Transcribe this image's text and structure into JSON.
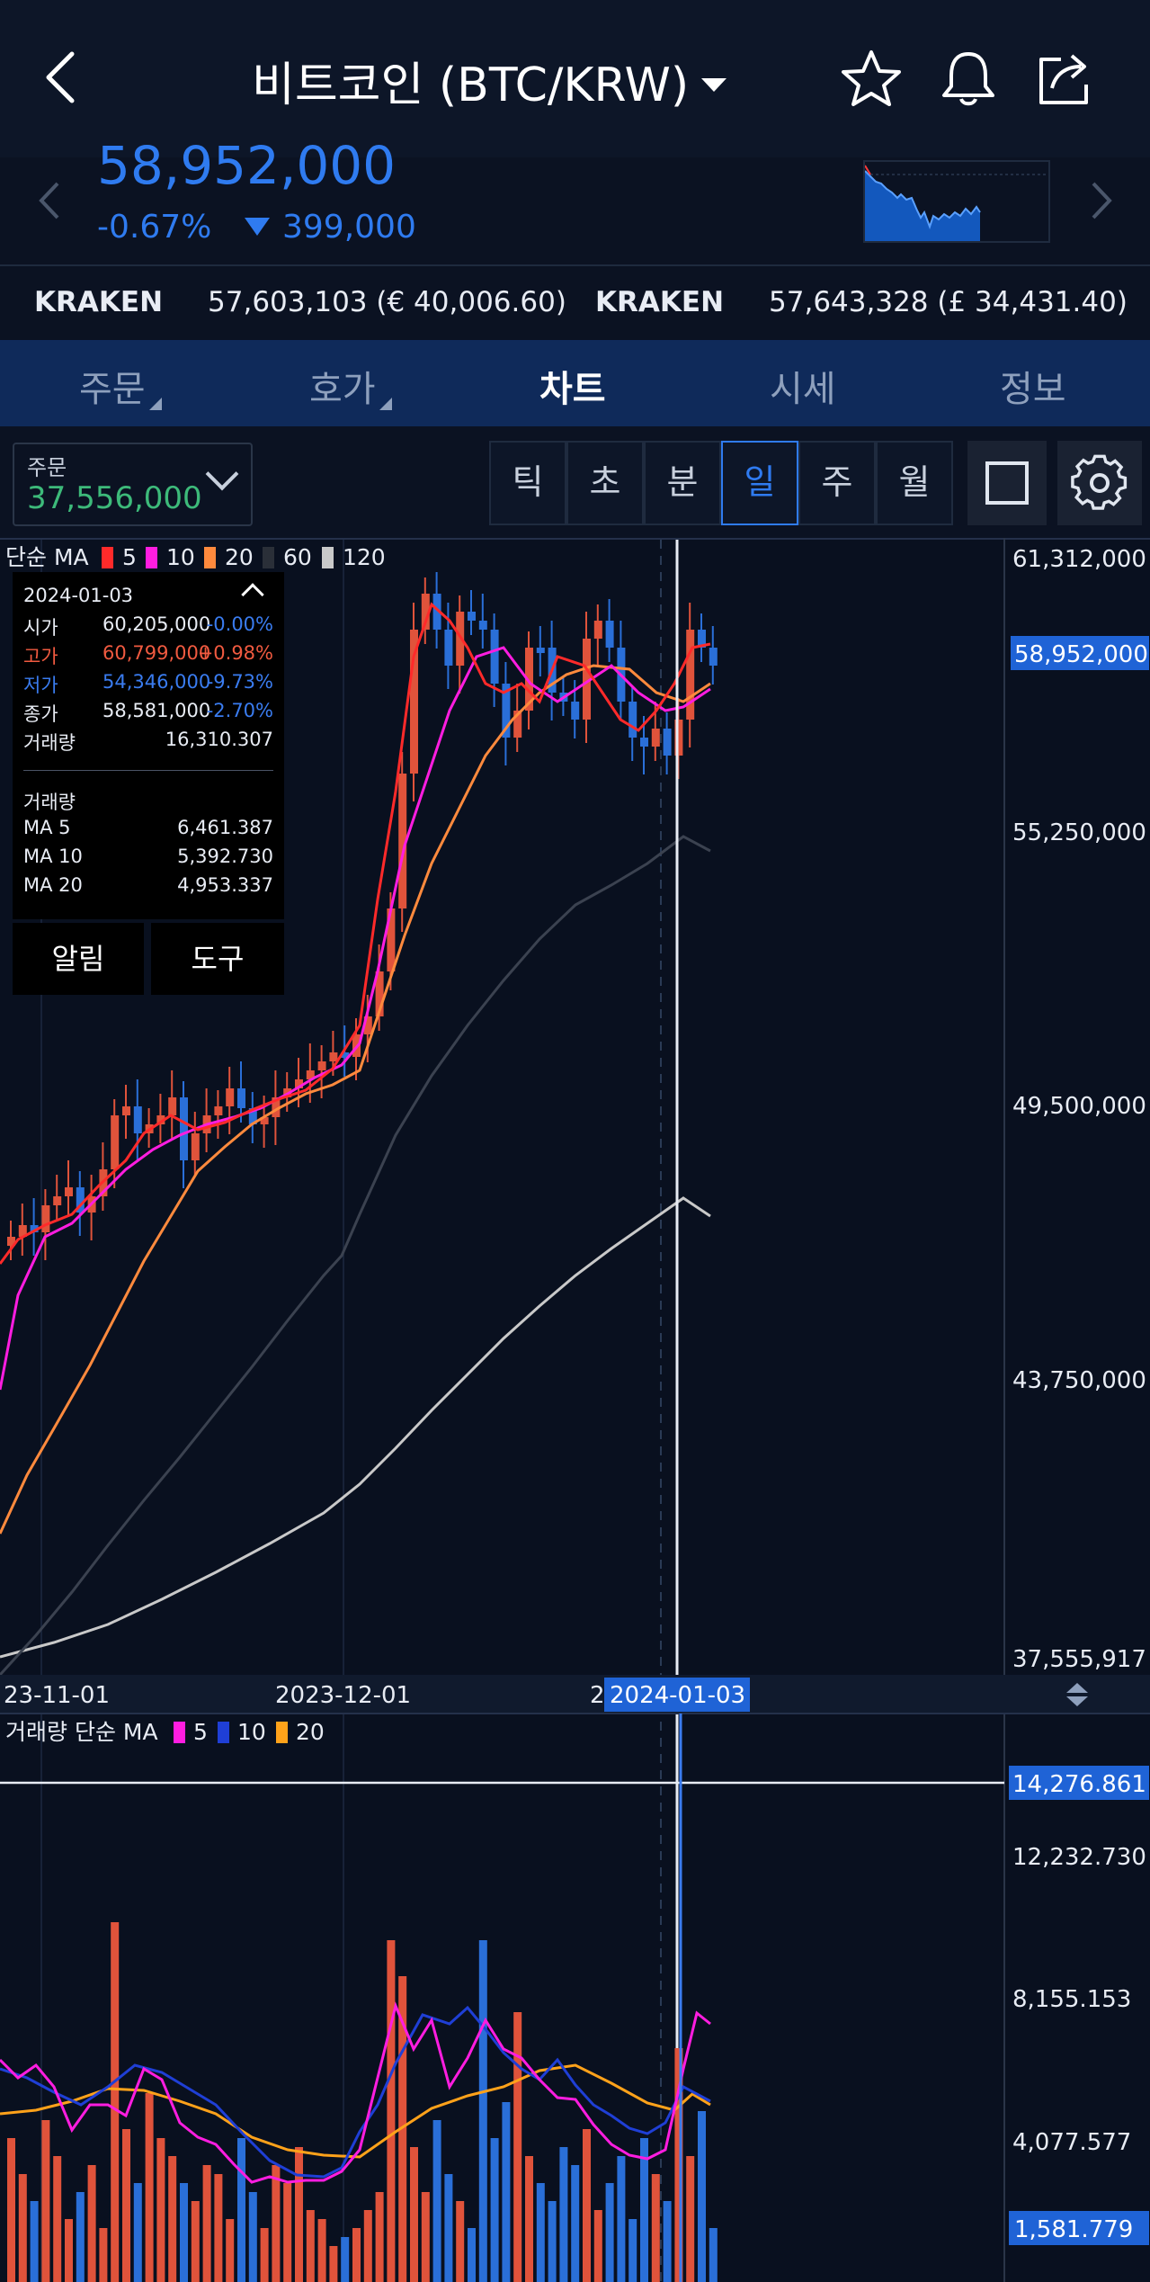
{
  "header": {
    "title": "비트코인 (BTC/KRW)",
    "price": "58,952,000",
    "change_pct": "-0.67%",
    "change_amt": "399,000"
  },
  "exchanges": [
    {
      "name": "KRAKEN",
      "value": "57,603,103 (€ 40,006.60)"
    },
    {
      "name": "KRAKEN",
      "value": "57,643,328 (£ 34,431.40)"
    }
  ],
  "tabs": [
    {
      "label": "주문"
    },
    {
      "label": "호가"
    },
    {
      "label": "차트"
    },
    {
      "label": "시세"
    },
    {
      "label": "정보"
    }
  ],
  "order": {
    "label": "주문",
    "value": "37,556,000"
  },
  "periods": [
    "틱",
    "초",
    "분",
    "일",
    "주",
    "월"
  ],
  "selected_period": "일",
  "chart": {
    "ma_label": "단순 MA",
    "ma_legend": [
      {
        "label": "5",
        "color": "#ff2a2a"
      },
      {
        "label": "10",
        "color": "#ff1de0"
      },
      {
        "label": "20",
        "color": "#ff8a3d"
      },
      {
        "label": "60",
        "color": "#2a2f38"
      },
      {
        "label": "120",
        "color": "#c9c9c9"
      }
    ],
    "price_axis": [
      "61,312,000",
      "55,250,000",
      "49,500,000",
      "43,750,000",
      "37,555,917"
    ],
    "current_price_tag": "58,952,000",
    "date_axis": [
      "23-11-01",
      "2023-12-01",
      "2"
    ],
    "crosshair_date": "2024-01-03",
    "vol_ma_label": "거래량 단순 MA",
    "vol_ma_legend": [
      {
        "label": "5",
        "color": "#ff1de0"
      },
      {
        "label": "10",
        "color": "#1f3fd6"
      },
      {
        "label": "20",
        "color": "#ffa21a"
      }
    ],
    "vol_axis": [
      "12,232.730",
      "8,155.153",
      "4,077.577"
    ],
    "vol_crosshair_tag": "14,276.861",
    "vol_current_tag": "1,581.779"
  },
  "info": {
    "date": "2024-01-03",
    "rows": [
      {
        "label": "시가",
        "value": "60,205,000",
        "pct": "-0.00%",
        "color": "#3a7cf0"
      },
      {
        "label": "고가",
        "value": "60,799,000",
        "pct": "+0.98%",
        "color": "#f05a40"
      },
      {
        "label": "저가",
        "value": "54,346,000",
        "pct": "-9.73%",
        "color": "#3a7cf0"
      },
      {
        "label": "종가",
        "value": "58,581,000",
        "pct": "-2.70%",
        "color": "#3a7cf0"
      }
    ],
    "volume_label": "거래량",
    "volume_value": "16,310.307",
    "vol_section_label": "거래량",
    "vol_ma": [
      {
        "label": "MA 5",
        "value": "6,461.387"
      },
      {
        "label": "MA 10",
        "value": "5,392.730"
      },
      {
        "label": "MA 20",
        "value": "4,953.337"
      }
    ],
    "buttons": [
      "알림",
      "도구"
    ]
  }
}
